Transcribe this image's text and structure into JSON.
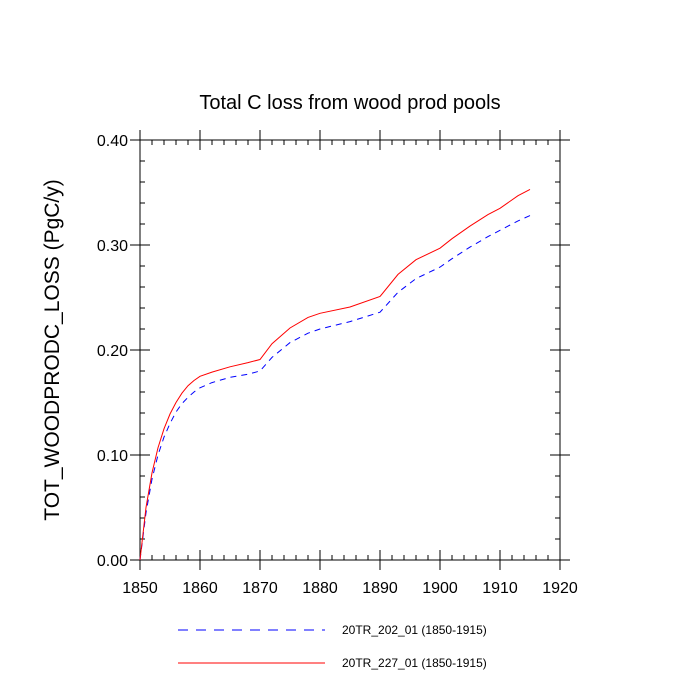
{
  "chart_data": {
    "type": "line",
    "title": "Total C loss from wood prod pools",
    "xlabel": "",
    "ylabel": "TOT_WOODPRODC_LOSS  (PgC/y)",
    "xlim": [
      1850,
      1920
    ],
    "ylim": [
      0.0,
      0.4
    ],
    "x_ticks": [
      1850,
      1860,
      1870,
      1880,
      1890,
      1900,
      1910,
      1920
    ],
    "x_tick_labels": [
      "1850",
      "1860",
      "1870",
      "1880",
      "1890",
      "1900",
      "1910",
      "1920"
    ],
    "y_ticks": [
      0.0,
      0.1,
      0.2,
      0.3,
      0.4
    ],
    "y_tick_labels": [
      "0.00",
      "0.10",
      "0.20",
      "0.30",
      "0.40"
    ],
    "grid": false,
    "legend_position": "bottom",
    "series": [
      {
        "name": "20TR_202_01 (1850-1915)",
        "color": "#0000ff",
        "style": "dashed",
        "x": [
          1850,
          1851,
          1852,
          1853,
          1854,
          1855,
          1856,
          1857,
          1858,
          1859,
          1860,
          1862,
          1865,
          1868,
          1870,
          1872,
          1875,
          1878,
          1880,
          1885,
          1890,
          1893,
          1896,
          1900,
          1902,
          1905,
          1908,
          1910,
          1913,
          1915
        ],
        "y": [
          0.0,
          0.045,
          0.077,
          0.1,
          0.117,
          0.13,
          0.141,
          0.149,
          0.155,
          0.16,
          0.164,
          0.169,
          0.174,
          0.177,
          0.18,
          0.193,
          0.207,
          0.216,
          0.22,
          0.227,
          0.236,
          0.255,
          0.268,
          0.279,
          0.287,
          0.298,
          0.308,
          0.314,
          0.323,
          0.328
        ]
      },
      {
        "name": "20TR_227_01 (1850-1915)",
        "color": "#ff0000",
        "style": "solid",
        "x": [
          1850,
          1851,
          1852,
          1853,
          1854,
          1855,
          1856,
          1857,
          1858,
          1859,
          1860,
          1862,
          1865,
          1868,
          1870,
          1872,
          1875,
          1878,
          1880,
          1885,
          1890,
          1893,
          1896,
          1900,
          1902,
          1905,
          1908,
          1910,
          1913,
          1915
        ],
        "y": [
          0.0,
          0.05,
          0.083,
          0.107,
          0.125,
          0.139,
          0.15,
          0.159,
          0.166,
          0.171,
          0.175,
          0.179,
          0.184,
          0.188,
          0.191,
          0.206,
          0.221,
          0.231,
          0.235,
          0.241,
          0.251,
          0.272,
          0.286,
          0.297,
          0.306,
          0.318,
          0.329,
          0.335,
          0.347,
          0.353
        ]
      }
    ]
  }
}
